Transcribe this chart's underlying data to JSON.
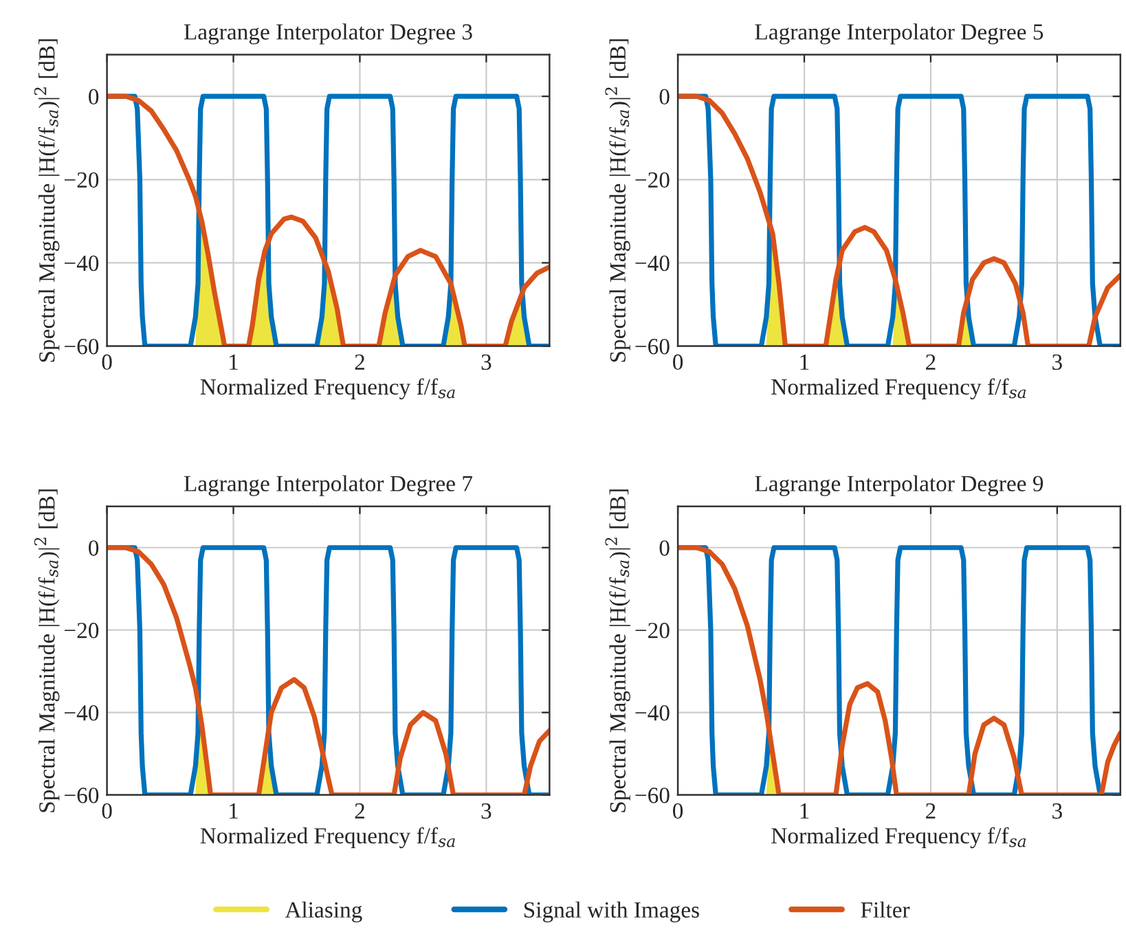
{
  "chart_data": [
    {
      "type": "line",
      "title": "Lagrange Interpolator Degree 3",
      "xlabel": "Normalized Frequency f/f$_{sa}$",
      "ylabel": "Spectral Magnitude |H(f/f$_{sa}$)|$^{2}$ [dB]",
      "xlim": [
        0,
        3.5
      ],
      "ylim": [
        -60,
        10
      ],
      "xticks": [
        0,
        1,
        2,
        3
      ],
      "yticks": [
        -60,
        -40,
        -20,
        0
      ],
      "grid": true,
      "legend": "bottom",
      "series": [
        {
          "name": "Aliasing",
          "type": "area",
          "color": "#ede440",
          "x": [
            0.7,
            0.72,
            0.73,
            0.75,
            0.8,
            0.85,
            0.9,
            0.93,
            1.0,
            1.12,
            1.15,
            1.2,
            1.25,
            1.28,
            1.3,
            1.33,
            1.5,
            1.68,
            1.72,
            1.75,
            1.82,
            1.87,
            2.0,
            2.15,
            2.2,
            2.25,
            2.28,
            2.3,
            2.33,
            2.5,
            2.68,
            2.72,
            2.8,
            2.83,
            3.0,
            3.15,
            3.2,
            3.25,
            3.28,
            3.3,
            3.33
          ],
          "values": [
            -60,
            -45,
            -30,
            -30,
            -38,
            -47,
            -55,
            -60,
            null,
            -60,
            -55,
            -44,
            -37,
            -45,
            -55,
            -60,
            null,
            -60,
            -45,
            -42,
            -51,
            -60,
            null,
            -60,
            -52,
            -47,
            -45,
            -55,
            -60,
            null,
            -60,
            -45,
            -55,
            -60,
            null,
            -60,
            -54,
            -50,
            -46,
            -55,
            -60
          ]
        },
        {
          "name": "Signal with Images",
          "color": "#0072bd",
          "x": [
            0,
            0.22,
            0.24,
            0.26,
            0.27,
            0.28,
            0.3,
            0.66,
            0.7,
            0.72,
            0.73,
            0.74,
            0.76,
            1.24,
            1.26,
            1.27,
            1.28,
            1.3,
            1.34,
            1.66,
            1.7,
            1.72,
            1.73,
            1.74,
            1.76,
            2.24,
            2.26,
            2.27,
            2.28,
            2.3,
            2.34,
            2.66,
            2.7,
            2.72,
            2.73,
            2.74,
            2.76,
            3.24,
            3.26,
            3.27,
            3.28,
            3.3,
            3.34,
            3.5
          ],
          "values": [
            0,
            0,
            -3,
            -20,
            -45,
            -53,
            -60,
            -60,
            -53,
            -45,
            -20,
            -3,
            0,
            0,
            -3,
            -20,
            -45,
            -53,
            -60,
            -60,
            -53,
            -45,
            -20,
            -3,
            0,
            0,
            -3,
            -20,
            -45,
            -53,
            -60,
            -60,
            -53,
            -45,
            -20,
            -3,
            0,
            0,
            -3,
            -20,
            -45,
            -53,
            -60,
            -60
          ]
        },
        {
          "name": "Filter",
          "color": "#d95319",
          "x": [
            0,
            0.15,
            0.25,
            0.35,
            0.45,
            0.55,
            0.65,
            0.7,
            0.75,
            0.8,
            0.85,
            0.9,
            0.93,
            1.12,
            1.15,
            1.2,
            1.25,
            1.3,
            1.4,
            1.46,
            1.55,
            1.65,
            1.75,
            1.82,
            1.87,
            2.15,
            2.2,
            2.28,
            2.38,
            2.48,
            2.6,
            2.72,
            2.8,
            2.83,
            3.15,
            3.2,
            3.3,
            3.4,
            3.5
          ],
          "values": [
            0,
            0,
            -1,
            -3.5,
            -8,
            -13,
            -20,
            -24,
            -30,
            -38,
            -47,
            -55,
            -60,
            -60,
            -55,
            -44,
            -37,
            -33,
            -29.5,
            -29,
            -30,
            -34,
            -42,
            -51,
            -60,
            -60,
            -52,
            -43,
            -38.5,
            -37,
            -38.5,
            -45,
            -55,
            -60,
            -60,
            -54,
            -46,
            -42.5,
            -41
          ]
        }
      ]
    },
    {
      "type": "line",
      "title": "Lagrange Interpolator Degree 5",
      "xlabel": "Normalized Frequency f/f$_{sa}$",
      "ylabel": "Spectral Magnitude |H(f/f$_{sa}$)|$^{2}$ [dB]",
      "xlim": [
        0,
        3.5
      ],
      "ylim": [
        -60,
        10
      ],
      "xticks": [
        0,
        1,
        2,
        3
      ],
      "yticks": [
        -60,
        -40,
        -20,
        0
      ],
      "grid": true,
      "series": [
        {
          "type": "area",
          "color": "#ede440",
          "x": [
            0.7,
            0.72,
            0.75,
            0.8,
            0.85,
            1.0,
            1.17,
            1.2,
            1.25,
            1.28,
            1.3,
            1.33,
            1.5,
            1.7,
            1.72,
            1.76,
            1.8,
            1.83,
            2.0,
            2.22,
            2.26,
            2.28,
            2.3,
            2.33
          ],
          "values": [
            -60,
            -45,
            -32,
            -45,
            -60,
            null,
            -60,
            -52,
            -44,
            -46,
            -55,
            -60,
            null,
            -60,
            -48,
            -50,
            -57,
            -60,
            null,
            -60,
            -52,
            -48,
            -55,
            -60
          ]
        },
        {
          "color": "#0072bd",
          "x": [
            0,
            0.22,
            0.24,
            0.26,
            0.27,
            0.28,
            0.3,
            0.66,
            0.7,
            0.72,
            0.73,
            0.74,
            0.76,
            1.24,
            1.26,
            1.27,
            1.28,
            1.3,
            1.34,
            1.66,
            1.7,
            1.72,
            1.73,
            1.74,
            1.76,
            2.24,
            2.26,
            2.27,
            2.28,
            2.3,
            2.34,
            2.66,
            2.7,
            2.72,
            2.73,
            2.74,
            2.76,
            3.24,
            3.26,
            3.27,
            3.28,
            3.3,
            3.34,
            3.5
          ],
          "values": [
            0,
            0,
            -3,
            -20,
            -45,
            -53,
            -60,
            -60,
            -53,
            -45,
            -20,
            -3,
            0,
            0,
            -3,
            -20,
            -45,
            -53,
            -60,
            -60,
            -53,
            -45,
            -20,
            -3,
            0,
            0,
            -3,
            -20,
            -45,
            -53,
            -60,
            -60,
            -53,
            -45,
            -20,
            -3,
            0,
            0,
            -3,
            -20,
            -45,
            -53,
            -60,
            -60
          ]
        },
        {
          "color": "#d95319",
          "x": [
            0,
            0.15,
            0.25,
            0.35,
            0.45,
            0.55,
            0.65,
            0.7,
            0.75,
            0.8,
            0.85,
            1.17,
            1.2,
            1.25,
            1.3,
            1.4,
            1.48,
            1.55,
            1.65,
            1.72,
            1.78,
            1.83,
            2.22,
            2.26,
            2.33,
            2.42,
            2.5,
            2.58,
            2.67,
            2.73,
            2.77,
            3.25,
            3.3,
            3.4,
            3.5
          ],
          "values": [
            0,
            0,
            -1,
            -4,
            -9,
            -15,
            -23,
            -28,
            -33,
            -45,
            -60,
            -60,
            -54,
            -44,
            -37,
            -32.5,
            -31.5,
            -32.5,
            -37,
            -44,
            -52,
            -60,
            -60,
            -52,
            -44,
            -40,
            -39,
            -40,
            -45,
            -52,
            -60,
            -60,
            -53,
            -46,
            -43
          ]
        }
      ]
    },
    {
      "type": "line",
      "title": "Lagrange Interpolator Degree 7",
      "xlabel": "Normalized Frequency f/f$_{sa}$",
      "ylabel": "Spectral Magnitude |H(f/f$_{sa}$)|$^{2}$ [dB]",
      "xlim": [
        0,
        3.5
      ],
      "ylim": [
        -60,
        10
      ],
      "xticks": [
        0,
        1,
        2,
        3
      ],
      "yticks": [
        -60,
        -40,
        -20,
        0
      ],
      "grid": true,
      "series": [
        {
          "type": "area",
          "color": "#ede440",
          "x": [
            0.7,
            0.72,
            0.75,
            0.8,
            0.82,
            1.0,
            1.2,
            1.25,
            1.28,
            1.3,
            1.33
          ],
          "values": [
            -60,
            -45,
            -38,
            -55,
            -60,
            null,
            -60,
            -52,
            -50,
            -56,
            -60
          ]
        },
        {
          "color": "#0072bd",
          "x": [
            0,
            0.22,
            0.24,
            0.26,
            0.27,
            0.28,
            0.3,
            0.66,
            0.7,
            0.72,
            0.73,
            0.74,
            0.76,
            1.24,
            1.26,
            1.27,
            1.28,
            1.3,
            1.34,
            1.66,
            1.7,
            1.72,
            1.73,
            1.74,
            1.76,
            2.24,
            2.26,
            2.27,
            2.28,
            2.3,
            2.34,
            2.66,
            2.7,
            2.72,
            2.73,
            2.74,
            2.76,
            3.24,
            3.26,
            3.27,
            3.28,
            3.3,
            3.34,
            3.5
          ],
          "values": [
            0,
            0,
            -3,
            -20,
            -45,
            -53,
            -60,
            -60,
            -53,
            -45,
            -20,
            -3,
            0,
            0,
            -3,
            -20,
            -45,
            -53,
            -60,
            -60,
            -53,
            -45,
            -20,
            -3,
            0,
            0,
            -3,
            -20,
            -45,
            -53,
            -60,
            -60,
            -53,
            -45,
            -20,
            -3,
            0,
            0,
            -3,
            -20,
            -45,
            -53,
            -60,
            -60
          ]
        },
        {
          "color": "#d95319",
          "x": [
            0,
            0.15,
            0.25,
            0.35,
            0.45,
            0.55,
            0.65,
            0.7,
            0.75,
            0.8,
            0.82,
            1.2,
            1.25,
            1.3,
            1.38,
            1.48,
            1.56,
            1.64,
            1.7,
            1.75,
            1.78,
            2.27,
            2.32,
            2.4,
            2.5,
            2.6,
            2.68,
            2.74,
            3.3,
            3.35,
            3.42,
            3.5
          ],
          "values": [
            0,
            0,
            -1,
            -4,
            -9,
            -17,
            -28,
            -34,
            -43,
            -55,
            -60,
            -60,
            -50,
            -40,
            -34,
            -32,
            -34,
            -41,
            -49,
            -56,
            -60,
            -60,
            -51,
            -43,
            -40,
            -42,
            -50,
            -60,
            -60,
            -53,
            -47,
            -44.4
          ]
        }
      ]
    },
    {
      "type": "line",
      "title": "Lagrange Interpolator Degree 9",
      "xlabel": "Normalized Frequency f/f$_{sa}$",
      "ylabel": "Spectral Magnitude |H(f/f$_{sa}$)|$^{2}$ [dB]",
      "xlim": [
        0,
        3.5
      ],
      "ylim": [
        -60,
        10
      ],
      "xticks": [
        0,
        1,
        2,
        3
      ],
      "yticks": [
        -60,
        -40,
        -20,
        0
      ],
      "grid": true,
      "series": [
        {
          "type": "area",
          "color": "#ede440",
          "x": [
            0.7,
            0.72,
            0.75,
            0.8
          ],
          "values": [
            -60,
            -48,
            -48,
            -60
          ]
        },
        {
          "color": "#0072bd",
          "x": [
            0,
            0.22,
            0.24,
            0.26,
            0.27,
            0.28,
            0.3,
            0.66,
            0.7,
            0.72,
            0.73,
            0.74,
            0.76,
            1.24,
            1.26,
            1.27,
            1.28,
            1.3,
            1.34,
            1.66,
            1.7,
            1.72,
            1.73,
            1.74,
            1.76,
            2.24,
            2.26,
            2.27,
            2.28,
            2.3,
            2.34,
            2.66,
            2.7,
            2.72,
            2.73,
            2.74,
            2.76,
            3.24,
            3.26,
            3.27,
            3.28,
            3.3,
            3.34,
            3.5
          ],
          "values": [
            0,
            0,
            -3,
            -20,
            -45,
            -53,
            -60,
            -60,
            -53,
            -45,
            -20,
            -3,
            0,
            0,
            -3,
            -20,
            -45,
            -53,
            -60,
            -60,
            -53,
            -45,
            -20,
            -3,
            0,
            0,
            -3,
            -20,
            -45,
            -53,
            -60,
            -60,
            -53,
            -45,
            -20,
            -3,
            0,
            0,
            -3,
            -20,
            -45,
            -53,
            -60,
            -60
          ]
        },
        {
          "color": "#d95319",
          "x": [
            0,
            0.15,
            0.25,
            0.35,
            0.45,
            0.55,
            0.65,
            0.7,
            0.75,
            0.8,
            1.25,
            1.3,
            1.36,
            1.42,
            1.5,
            1.58,
            1.64,
            1.69,
            1.73,
            2.3,
            2.35,
            2.42,
            2.5,
            2.58,
            2.66,
            2.72,
            3.35,
            3.4,
            3.45,
            3.5
          ],
          "values": [
            0,
            0,
            -1,
            -4,
            -10,
            -19,
            -32,
            -40,
            -50,
            -60,
            -60,
            -48,
            -38,
            -34,
            -33,
            -35,
            -42,
            -51,
            -60,
            -60,
            -50,
            -43,
            -41.4,
            -43,
            -51,
            -60,
            -60,
            -52,
            -48,
            -45
          ]
        }
      ]
    }
  ]
}
